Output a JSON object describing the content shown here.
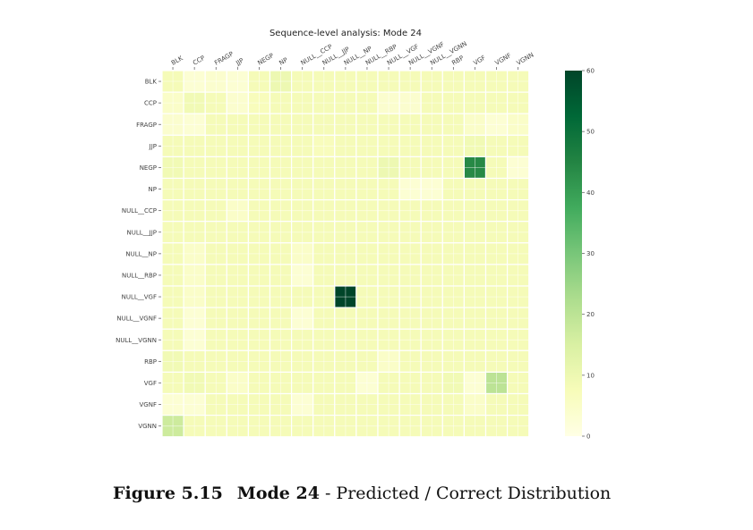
{
  "chart_data": {
    "type": "heatmap",
    "title": "Sequence-level analysis: Mode 24",
    "xlabel": "",
    "ylabel": "",
    "x_labels": [
      "BLK",
      "CCP",
      "FRAGP",
      "JJP",
      "NEGP",
      "NP",
      "NULL__CCP",
      "NULL__JJP",
      "NULL__NP",
      "NULL__RBP",
      "NULL__VGF",
      "NULL__VGNF",
      "NULL__VGNN",
      "RBP",
      "VGF",
      "VGNF",
      "VGNN"
    ],
    "y_labels": [
      "BLK",
      "CCP",
      "FRAGP",
      "JJP",
      "NEGP",
      "NP",
      "NULL__CCP",
      "NULL__JJP",
      "NULL__NP",
      "NULL__RBP",
      "NULL__VGF",
      "NULL__VGNF",
      "NULL__VGNN",
      "RBP",
      "VGF",
      "VGNF",
      "VGNN"
    ],
    "matrix": [
      [
        8,
        3,
        4,
        3,
        8,
        10,
        8,
        8,
        8,
        8,
        8,
        8,
        8,
        8,
        8,
        8,
        8
      ],
      [
        5,
        9,
        8,
        4,
        7,
        8,
        8,
        8,
        8,
        8,
        4,
        4,
        8,
        8,
        8,
        8,
        8
      ],
      [
        4,
        3,
        8,
        8,
        8,
        8,
        8,
        8,
        8,
        8,
        8,
        8,
        8,
        8,
        5,
        3,
        5
      ],
      [
        8,
        8,
        8,
        8,
        8,
        8,
        8,
        7,
        8,
        8,
        8,
        8,
        8,
        8,
        9,
        8,
        8
      ],
      [
        9,
        8,
        8,
        8,
        8,
        8,
        8,
        8,
        8,
        8,
        10,
        8,
        8,
        8,
        44,
        8,
        3
      ],
      [
        8,
        8,
        8,
        8,
        8,
        8,
        8,
        8,
        8,
        8,
        8,
        3,
        3,
        8,
        8,
        8,
        8
      ],
      [
        8,
        8,
        8,
        5,
        8,
        8,
        8,
        8,
        8,
        8,
        8,
        8,
        8,
        8,
        8,
        8,
        8
      ],
      [
        8,
        8,
        8,
        8,
        8,
        8,
        8,
        8,
        8,
        8,
        8,
        8,
        8,
        8,
        8,
        8,
        8
      ],
      [
        8,
        5,
        8,
        8,
        8,
        8,
        5,
        8,
        8,
        8,
        8,
        8,
        8,
        8,
        8,
        8,
        8
      ],
      [
        8,
        5,
        8,
        8,
        8,
        8,
        3,
        8,
        8,
        8,
        8,
        8,
        8,
        8,
        8,
        8,
        8
      ],
      [
        8,
        5,
        8,
        8,
        8,
        8,
        8,
        8,
        60,
        8,
        8,
        8,
        8,
        8,
        8,
        8,
        8
      ],
      [
        8,
        3,
        8,
        8,
        8,
        8,
        3,
        8,
        8,
        8,
        8,
        8,
        8,
        8,
        8,
        8,
        8
      ],
      [
        8,
        3,
        8,
        8,
        8,
        8,
        8,
        8,
        8,
        8,
        8,
        8,
        8,
        8,
        8,
        8,
        8
      ],
      [
        9,
        8,
        8,
        8,
        8,
        8,
        8,
        8,
        8,
        8,
        5,
        8,
        8,
        8,
        8,
        8,
        8
      ],
      [
        8,
        9,
        8,
        5,
        8,
        8,
        8,
        8,
        8,
        3,
        8,
        8,
        8,
        9,
        3,
        20,
        8
      ],
      [
        3,
        3,
        8,
        8,
        8,
        8,
        3,
        8,
        8,
        8,
        8,
        8,
        8,
        8,
        5,
        8,
        8
      ],
      [
        17,
        8,
        8,
        8,
        8,
        8,
        8,
        8,
        8,
        8,
        8,
        8,
        8,
        8,
        8,
        8,
        8
      ]
    ],
    "zlim": [
      0,
      60
    ],
    "colorbar_ticks": [
      0,
      10,
      20,
      30,
      40,
      50,
      60
    ],
    "colormap": "YlGn",
    "grid": true
  },
  "caption": {
    "number": "Figure 5.15",
    "mode": "Mode 24",
    "rest": " - Predicted / Correct Distribution"
  }
}
